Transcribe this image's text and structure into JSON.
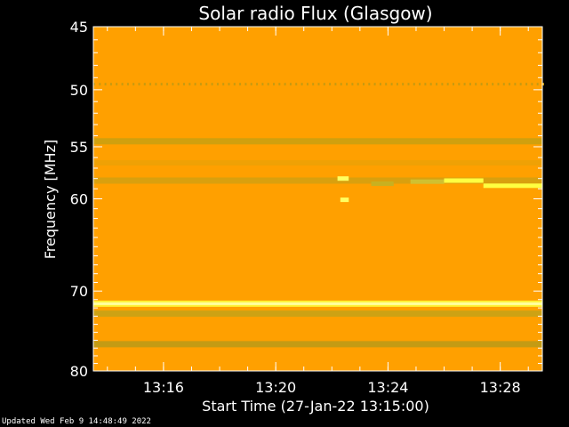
{
  "chart_data": {
    "type": "heatmap",
    "title": "Solar radio Flux (Glasgow)",
    "xlabel": "Start Time (27-Jan-22 13:15:00)",
    "ylabel": "Frequency [MHz]",
    "ylim": [
      45,
      80
    ],
    "yscale": "log",
    "y_ticks": [
      45,
      50,
      55,
      60,
      70,
      80
    ],
    "xlim_minutes": [
      13.5,
      29.5
    ],
    "x_ticks": [
      {
        "label": "13:16",
        "minute": 16
      },
      {
        "label": "13:20",
        "minute": 20
      },
      {
        "label": "13:24",
        "minute": 24
      },
      {
        "label": "13:28",
        "minute": 28
      }
    ],
    "background_color": "#ffa000",
    "bands": [
      {
        "freq": 49.5,
        "color": "#c89a10",
        "intensity": "dotted"
      },
      {
        "freq": 54.5,
        "color": "#c8a010",
        "intensity": "medium"
      },
      {
        "freq": 56.5,
        "color": "#e4a208",
        "intensity": "weak"
      },
      {
        "freq": 58.2,
        "color": "#d2a010",
        "intensity": "medium"
      },
      {
        "freq": 71.5,
        "color": "#ffff40",
        "intensity": "strong"
      },
      {
        "freq": 72.7,
        "color": "#c4a218",
        "intensity": "medium"
      },
      {
        "freq": 76.5,
        "color": "#b89a18",
        "intensity": "medium"
      }
    ],
    "bursts": [
      {
        "freq": 58.0,
        "from": 22.2,
        "to": 22.6,
        "color": "#ffff60"
      },
      {
        "freq": 60.1,
        "from": 22.3,
        "to": 22.6,
        "color": "#ffff60"
      },
      {
        "freq": 58.5,
        "from": 23.4,
        "to": 24.2,
        "color": "#c8b020"
      },
      {
        "freq": 58.3,
        "from": 24.8,
        "to": 26.0,
        "color": "#d0c030"
      },
      {
        "freq": 58.2,
        "from": 26.0,
        "to": 27.4,
        "color": "#ffff40"
      },
      {
        "freq": 58.7,
        "from": 27.4,
        "to": 29.5,
        "color": "#ffff40"
      }
    ]
  },
  "footer": {
    "updated": "Updated Wed Feb  9 14:48:49 2022"
  }
}
